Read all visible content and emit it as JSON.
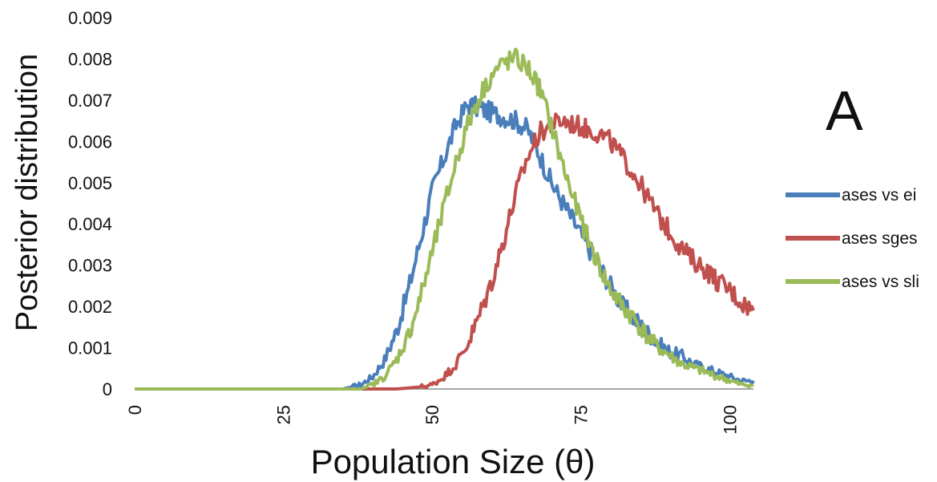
{
  "chart_data": {
    "type": "line",
    "panel_label": "A",
    "xlabel": "Population Size (θ)",
    "ylabel": "Posterior distribution",
    "xlim": [
      0,
      104
    ],
    "ylim": [
      0,
      0.009
    ],
    "x_ticks": [
      0,
      25,
      50,
      75,
      100
    ],
    "y_ticks": [
      "0",
      "0.001",
      "0.002",
      "0.003",
      "0.004",
      "0.005",
      "0.006",
      "0.007",
      "0.008",
      "0.009"
    ],
    "grid": false,
    "legend_position": "right",
    "series": [
      {
        "name": "ases vs ei",
        "color": "#4a7ebb",
        "points": [
          [
            0,
            0
          ],
          [
            35,
            0
          ],
          [
            38,
            0.0001
          ],
          [
            40,
            0.0003
          ],
          [
            42,
            0.0007
          ],
          [
            44,
            0.0014
          ],
          [
            46,
            0.0024
          ],
          [
            48,
            0.0036
          ],
          [
            50,
            0.0048
          ],
          [
            52,
            0.0056
          ],
          [
            54,
            0.0064
          ],
          [
            56,
            0.0069
          ],
          [
            58,
            0.0068
          ],
          [
            60,
            0.0067
          ],
          [
            62,
            0.0066
          ],
          [
            64,
            0.0065
          ],
          [
            66,
            0.0063
          ],
          [
            68,
            0.0057
          ],
          [
            70,
            0.005
          ],
          [
            72,
            0.0045
          ],
          [
            74,
            0.004
          ],
          [
            76,
            0.0035
          ],
          [
            78,
            0.003
          ],
          [
            80,
            0.0025
          ],
          [
            82,
            0.002
          ],
          [
            84,
            0.0017
          ],
          [
            86,
            0.0014
          ],
          [
            88,
            0.0011
          ],
          [
            90,
            0.0009
          ],
          [
            92,
            0.0008
          ],
          [
            94,
            0.0006
          ],
          [
            96,
            0.0005
          ],
          [
            98,
            0.0004
          ],
          [
            100,
            0.0003
          ],
          [
            102,
            0.0002
          ],
          [
            104,
            0.0002
          ]
        ]
      },
      {
        "name": "ases sges",
        "color": "#c0504d",
        "points": [
          [
            0,
            0
          ],
          [
            40,
            0
          ],
          [
            44,
            0
          ],
          [
            48,
            5e-05
          ],
          [
            50,
            0.0001
          ],
          [
            52,
            0.0003
          ],
          [
            54,
            0.0006
          ],
          [
            56,
            0.0011
          ],
          [
            58,
            0.0018
          ],
          [
            60,
            0.0026
          ],
          [
            62,
            0.0036
          ],
          [
            64,
            0.0047
          ],
          [
            66,
            0.0056
          ],
          [
            68,
            0.0062
          ],
          [
            70,
            0.0064
          ],
          [
            72,
            0.0065
          ],
          [
            74,
            0.0064
          ],
          [
            76,
            0.0063
          ],
          [
            78,
            0.0062
          ],
          [
            80,
            0.006
          ],
          [
            82,
            0.0056
          ],
          [
            84,
            0.0052
          ],
          [
            86,
            0.0047
          ],
          [
            88,
            0.0042
          ],
          [
            90,
            0.0038
          ],
          [
            92,
            0.0034
          ],
          [
            94,
            0.0031
          ],
          [
            96,
            0.0029
          ],
          [
            98,
            0.0026
          ],
          [
            100,
            0.0024
          ],
          [
            102,
            0.0021
          ],
          [
            104,
            0.0019
          ]
        ]
      },
      {
        "name": "ases vs sli",
        "color": "#9bbb59",
        "points": [
          [
            0,
            0
          ],
          [
            38,
            0
          ],
          [
            40,
            0.0001
          ],
          [
            42,
            0.0003
          ],
          [
            44,
            0.0007
          ],
          [
            46,
            0.0013
          ],
          [
            48,
            0.0022
          ],
          [
            50,
            0.0033
          ],
          [
            52,
            0.0044
          ],
          [
            54,
            0.0055
          ],
          [
            56,
            0.0064
          ],
          [
            58,
            0.0071
          ],
          [
            60,
            0.0076
          ],
          [
            62,
            0.0079
          ],
          [
            64,
            0.008
          ],
          [
            66,
            0.0078
          ],
          [
            68,
            0.0073
          ],
          [
            70,
            0.0064
          ],
          [
            72,
            0.0054
          ],
          [
            74,
            0.0045
          ],
          [
            76,
            0.0037
          ],
          [
            78,
            0.003
          ],
          [
            80,
            0.0024
          ],
          [
            82,
            0.002
          ],
          [
            84,
            0.0017
          ],
          [
            86,
            0.0013
          ],
          [
            88,
            0.001
          ],
          [
            90,
            0.0008
          ],
          [
            92,
            0.0006
          ],
          [
            94,
            0.0005
          ],
          [
            96,
            0.0004
          ],
          [
            98,
            0.0003
          ],
          [
            100,
            0.0002
          ],
          [
            102,
            0.0001
          ],
          [
            104,
            0.0001
          ]
        ]
      }
    ]
  }
}
